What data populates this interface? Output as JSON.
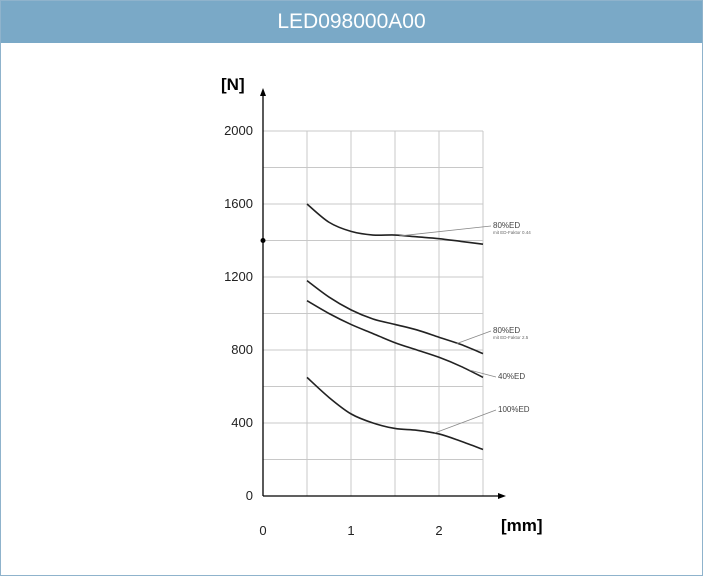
{
  "header": {
    "title": "LED098000A00"
  },
  "chart_data": {
    "type": "line",
    "title": "LED098000A00",
    "xlabel": "[mm]",
    "ylabel": "[N]",
    "xlim": [
      0,
      2.5
    ],
    "ylim": [
      0,
      2000
    ],
    "x_ticks": [
      "0",
      "1",
      "2"
    ],
    "y_ticks": [
      "0",
      "400",
      "800",
      "1200",
      "1600",
      "2000"
    ],
    "y_marker": 1400,
    "series": [
      {
        "name": "80%ED",
        "sub_label": "mit ED-Faktor 0.44",
        "points": [
          [
            0.5,
            1600
          ],
          [
            0.75,
            1500
          ],
          [
            1.0,
            1450
          ],
          [
            1.25,
            1430
          ],
          [
            1.5,
            1430
          ],
          [
            1.75,
            1420
          ],
          [
            2.0,
            1410
          ],
          [
            2.25,
            1395
          ],
          [
            2.5,
            1380
          ]
        ]
      },
      {
        "name": "80%ED",
        "sub_label": "mit ED-Faktor 2.5",
        "points": [
          [
            0.5,
            1180
          ],
          [
            0.75,
            1090
          ],
          [
            1.0,
            1020
          ],
          [
            1.25,
            970
          ],
          [
            1.5,
            940
          ],
          [
            1.75,
            910
          ],
          [
            2.0,
            870
          ],
          [
            2.25,
            830
          ],
          [
            2.5,
            780
          ]
        ]
      },
      {
        "name": "40%ED",
        "sub_label": "",
        "points": [
          [
            0.5,
            1070
          ],
          [
            0.75,
            1000
          ],
          [
            1.0,
            940
          ],
          [
            1.25,
            890
          ],
          [
            1.5,
            840
          ],
          [
            1.75,
            800
          ],
          [
            2.0,
            760
          ],
          [
            2.25,
            710
          ],
          [
            2.5,
            650
          ]
        ]
      },
      {
        "name": "100%ED",
        "sub_label": "",
        "points": [
          [
            0.5,
            650
          ],
          [
            0.75,
            540
          ],
          [
            1.0,
            450
          ],
          [
            1.25,
            400
          ],
          [
            1.5,
            370
          ],
          [
            1.75,
            360
          ],
          [
            2.0,
            340
          ],
          [
            2.25,
            300
          ],
          [
            2.5,
            255
          ]
        ]
      }
    ]
  }
}
